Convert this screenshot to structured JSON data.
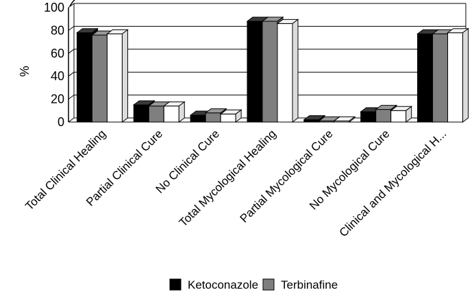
{
  "chart_data": {
    "type": "bar",
    "style": "3d-clustered",
    "ylabel": "%",
    "xlabel": "",
    "title": "",
    "ylim": [
      0,
      100
    ],
    "yticks": [
      0,
      20,
      40,
      60,
      80,
      100
    ],
    "grid": true,
    "legend_position": "bottom",
    "categories": [
      "Total Clinical Healing",
      "Partial Clinical Cure",
      "No Clinical Cure",
      "Total Mycological Healing",
      "Partial Mycological Cure",
      "No Mycological Cure",
      "Clinical and Mycological H..."
    ],
    "series": [
      {
        "name": "Ketoconazole",
        "color": "#000000",
        "values": [
          78,
          15,
          6,
          88,
          2,
          9,
          77
        ]
      },
      {
        "name": "Terbinafine",
        "color": "#7f7f7f",
        "values": [
          76,
          14,
          8,
          88,
          1,
          11,
          77
        ]
      },
      {
        "name": "",
        "color": "#ffffff",
        "values": [
          77,
          14,
          7,
          86,
          1,
          10,
          78
        ]
      }
    ],
    "legend": [
      "Ketoconazole",
      "Terbinafine"
    ]
  }
}
